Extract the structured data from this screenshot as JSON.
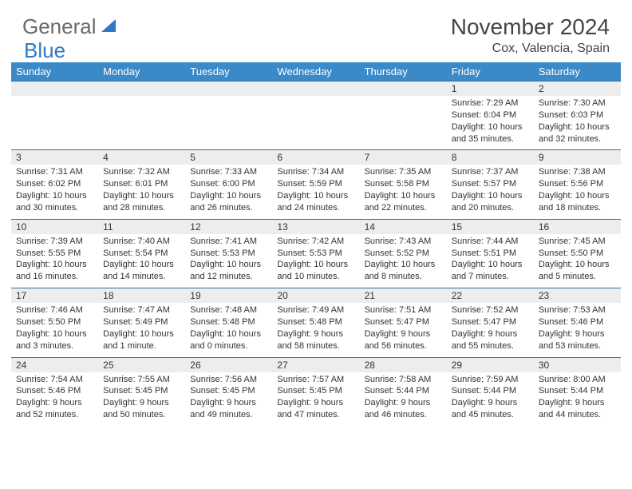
{
  "logo": {
    "part1": "General",
    "part2": "Blue"
  },
  "title": "November 2024",
  "location": "Cox, Valencia, Spain",
  "colors": {
    "header_bg": "#3a8ac9",
    "header_text": "#ffffff",
    "daynum_bg": "#ededed",
    "border": "#2c6fa5",
    "logo_gray": "#6a6a6a",
    "logo_blue": "#2f7ac4",
    "text": "#333333"
  },
  "day_labels": [
    "Sunday",
    "Monday",
    "Tuesday",
    "Wednesday",
    "Thursday",
    "Friday",
    "Saturday"
  ],
  "weeks": [
    {
      "nums": [
        "",
        "",
        "",
        "",
        "",
        "1",
        "2"
      ],
      "cells": [
        null,
        null,
        null,
        null,
        null,
        {
          "sunrise": "Sunrise: 7:29 AM",
          "sunset": "Sunset: 6:04 PM",
          "daylight": "Daylight: 10 hours and 35 minutes."
        },
        {
          "sunrise": "Sunrise: 7:30 AM",
          "sunset": "Sunset: 6:03 PM",
          "daylight": "Daylight: 10 hours and 32 minutes."
        }
      ]
    },
    {
      "nums": [
        "3",
        "4",
        "5",
        "6",
        "7",
        "8",
        "9"
      ],
      "cells": [
        {
          "sunrise": "Sunrise: 7:31 AM",
          "sunset": "Sunset: 6:02 PM",
          "daylight": "Daylight: 10 hours and 30 minutes."
        },
        {
          "sunrise": "Sunrise: 7:32 AM",
          "sunset": "Sunset: 6:01 PM",
          "daylight": "Daylight: 10 hours and 28 minutes."
        },
        {
          "sunrise": "Sunrise: 7:33 AM",
          "sunset": "Sunset: 6:00 PM",
          "daylight": "Daylight: 10 hours and 26 minutes."
        },
        {
          "sunrise": "Sunrise: 7:34 AM",
          "sunset": "Sunset: 5:59 PM",
          "daylight": "Daylight: 10 hours and 24 minutes."
        },
        {
          "sunrise": "Sunrise: 7:35 AM",
          "sunset": "Sunset: 5:58 PM",
          "daylight": "Daylight: 10 hours and 22 minutes."
        },
        {
          "sunrise": "Sunrise: 7:37 AM",
          "sunset": "Sunset: 5:57 PM",
          "daylight": "Daylight: 10 hours and 20 minutes."
        },
        {
          "sunrise": "Sunrise: 7:38 AM",
          "sunset": "Sunset: 5:56 PM",
          "daylight": "Daylight: 10 hours and 18 minutes."
        }
      ]
    },
    {
      "nums": [
        "10",
        "11",
        "12",
        "13",
        "14",
        "15",
        "16"
      ],
      "cells": [
        {
          "sunrise": "Sunrise: 7:39 AM",
          "sunset": "Sunset: 5:55 PM",
          "daylight": "Daylight: 10 hours and 16 minutes."
        },
        {
          "sunrise": "Sunrise: 7:40 AM",
          "sunset": "Sunset: 5:54 PM",
          "daylight": "Daylight: 10 hours and 14 minutes."
        },
        {
          "sunrise": "Sunrise: 7:41 AM",
          "sunset": "Sunset: 5:53 PM",
          "daylight": "Daylight: 10 hours and 12 minutes."
        },
        {
          "sunrise": "Sunrise: 7:42 AM",
          "sunset": "Sunset: 5:53 PM",
          "daylight": "Daylight: 10 hours and 10 minutes."
        },
        {
          "sunrise": "Sunrise: 7:43 AM",
          "sunset": "Sunset: 5:52 PM",
          "daylight": "Daylight: 10 hours and 8 minutes."
        },
        {
          "sunrise": "Sunrise: 7:44 AM",
          "sunset": "Sunset: 5:51 PM",
          "daylight": "Daylight: 10 hours and 7 minutes."
        },
        {
          "sunrise": "Sunrise: 7:45 AM",
          "sunset": "Sunset: 5:50 PM",
          "daylight": "Daylight: 10 hours and 5 minutes."
        }
      ]
    },
    {
      "nums": [
        "17",
        "18",
        "19",
        "20",
        "21",
        "22",
        "23"
      ],
      "cells": [
        {
          "sunrise": "Sunrise: 7:46 AM",
          "sunset": "Sunset: 5:50 PM",
          "daylight": "Daylight: 10 hours and 3 minutes."
        },
        {
          "sunrise": "Sunrise: 7:47 AM",
          "sunset": "Sunset: 5:49 PM",
          "daylight": "Daylight: 10 hours and 1 minute."
        },
        {
          "sunrise": "Sunrise: 7:48 AM",
          "sunset": "Sunset: 5:48 PM",
          "daylight": "Daylight: 10 hours and 0 minutes."
        },
        {
          "sunrise": "Sunrise: 7:49 AM",
          "sunset": "Sunset: 5:48 PM",
          "daylight": "Daylight: 9 hours and 58 minutes."
        },
        {
          "sunrise": "Sunrise: 7:51 AM",
          "sunset": "Sunset: 5:47 PM",
          "daylight": "Daylight: 9 hours and 56 minutes."
        },
        {
          "sunrise": "Sunrise: 7:52 AM",
          "sunset": "Sunset: 5:47 PM",
          "daylight": "Daylight: 9 hours and 55 minutes."
        },
        {
          "sunrise": "Sunrise: 7:53 AM",
          "sunset": "Sunset: 5:46 PM",
          "daylight": "Daylight: 9 hours and 53 minutes."
        }
      ]
    },
    {
      "nums": [
        "24",
        "25",
        "26",
        "27",
        "28",
        "29",
        "30"
      ],
      "cells": [
        {
          "sunrise": "Sunrise: 7:54 AM",
          "sunset": "Sunset: 5:46 PM",
          "daylight": "Daylight: 9 hours and 52 minutes."
        },
        {
          "sunrise": "Sunrise: 7:55 AM",
          "sunset": "Sunset: 5:45 PM",
          "daylight": "Daylight: 9 hours and 50 minutes."
        },
        {
          "sunrise": "Sunrise: 7:56 AM",
          "sunset": "Sunset: 5:45 PM",
          "daylight": "Daylight: 9 hours and 49 minutes."
        },
        {
          "sunrise": "Sunrise: 7:57 AM",
          "sunset": "Sunset: 5:45 PM",
          "daylight": "Daylight: 9 hours and 47 minutes."
        },
        {
          "sunrise": "Sunrise: 7:58 AM",
          "sunset": "Sunset: 5:44 PM",
          "daylight": "Daylight: 9 hours and 46 minutes."
        },
        {
          "sunrise": "Sunrise: 7:59 AM",
          "sunset": "Sunset: 5:44 PM",
          "daylight": "Daylight: 9 hours and 45 minutes."
        },
        {
          "sunrise": "Sunrise: 8:00 AM",
          "sunset": "Sunset: 5:44 PM",
          "daylight": "Daylight: 9 hours and 44 minutes."
        }
      ]
    }
  ]
}
